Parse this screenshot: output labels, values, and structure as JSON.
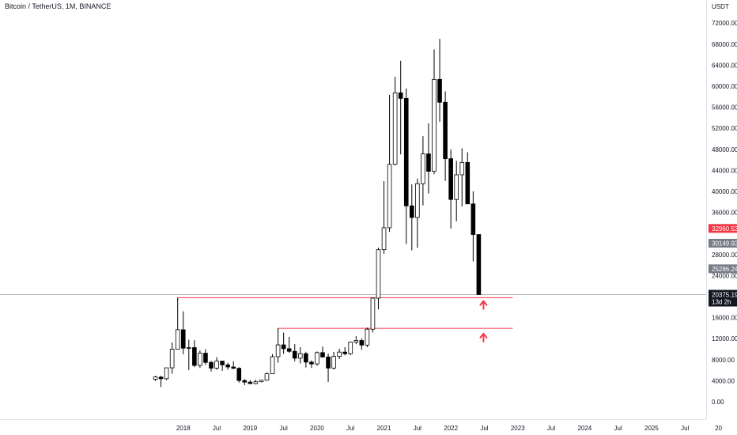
{
  "header": {
    "symbol_title": "Bitcoin / TetherUS, 1M, BINANCE"
  },
  "price_axis": {
    "currency": "USDT",
    "tick_labels": [
      "72000.00",
      "68000.00",
      "64000.00",
      "60000.00",
      "56000.00",
      "52000.00",
      "48000.00",
      "44000.00",
      "40000.00",
      "36000.00",
      "28000.00",
      "24000.00",
      "16000.00",
      "12000.00",
      "8000.00",
      "4000.00",
      "0.00"
    ]
  },
  "price_tags": [
    {
      "label": "32960.53",
      "bg": "#f23645"
    },
    {
      "label": "30149.93",
      "bg": "#787b86"
    },
    {
      "label": "25286.24",
      "bg": "#787b86"
    }
  ],
  "current_price": {
    "label": "20375.19",
    "countdown": "13d 2h",
    "bg": "#131722"
  },
  "time_axis": {
    "labels": [
      "2018",
      "Jul",
      "2019",
      "Jul",
      "2020",
      "Jul",
      "2021",
      "Jul",
      "2022",
      "Jul",
      "2023",
      "Jul",
      "2024",
      "Jul",
      "2025",
      "Jul",
      "20"
    ]
  },
  "colors": {
    "up_fill": "#ffffff",
    "down_fill": "#000000",
    "candle_stroke": "#000000",
    "support_line": "#f23645",
    "arrow": "#f23645",
    "crosshair": "#9598a1"
  },
  "chart_data": {
    "type": "candlestick",
    "title": "Bitcoin / TetherUS, 1M, BINANCE",
    "symbol": "BTCUSDT",
    "timeframe": "1M",
    "exchange": "BINANCE",
    "y_unit": "USDT",
    "ylim": [
      0,
      74000
    ],
    "x_start": "2017-08",
    "x_end": "2026-01",
    "candles": [
      {
        "t": "2017-08",
        "o": 4260,
        "h": 4940,
        "l": 3930,
        "c": 4720
      },
      {
        "t": "2017-09",
        "o": 4690,
        "h": 4940,
        "l": 2820,
        "c": 4380
      },
      {
        "t": "2017-10",
        "o": 4380,
        "h": 6470,
        "l": 4110,
        "c": 6460
      },
      {
        "t": "2017-11",
        "o": 6460,
        "h": 11300,
        "l": 5330,
        "c": 10000
      },
      {
        "t": "2017-12",
        "o": 10000,
        "h": 19800,
        "l": 10000,
        "c": 13700
      },
      {
        "t": "2018-01",
        "o": 13700,
        "h": 17200,
        "l": 9040,
        "c": 10200
      },
      {
        "t": "2018-02",
        "o": 10200,
        "h": 11800,
        "l": 6000,
        "c": 10300
      },
      {
        "t": "2018-03",
        "o": 10300,
        "h": 11700,
        "l": 6600,
        "c": 6920
      },
      {
        "t": "2018-04",
        "o": 6920,
        "h": 9770,
        "l": 6420,
        "c": 9240
      },
      {
        "t": "2018-05",
        "o": 9240,
        "h": 10000,
        "l": 7030,
        "c": 7490
      },
      {
        "t": "2018-06",
        "o": 7490,
        "h": 7760,
        "l": 5760,
        "c": 6390
      },
      {
        "t": "2018-07",
        "o": 6390,
        "h": 8490,
        "l": 6070,
        "c": 7730
      },
      {
        "t": "2018-08",
        "o": 7730,
        "h": 7760,
        "l": 5880,
        "c": 7020
      },
      {
        "t": "2018-09",
        "o": 7020,
        "h": 7400,
        "l": 6100,
        "c": 6620
      },
      {
        "t": "2018-10",
        "o": 6620,
        "h": 7680,
        "l": 6200,
        "c": 6370
      },
      {
        "t": "2018-11",
        "o": 6370,
        "h": 6570,
        "l": 3650,
        "c": 4040
      },
      {
        "t": "2018-12",
        "o": 4040,
        "h": 4310,
        "l": 3160,
        "c": 3740
      },
      {
        "t": "2019-01",
        "o": 3740,
        "h": 4140,
        "l": 3350,
        "c": 3460
      },
      {
        "t": "2019-02",
        "o": 3460,
        "h": 4200,
        "l": 3370,
        "c": 3810
      },
      {
        "t": "2019-03",
        "o": 3810,
        "h": 4120,
        "l": 3690,
        "c": 4100
      },
      {
        "t": "2019-04",
        "o": 4100,
        "h": 5600,
        "l": 4030,
        "c": 5320
      },
      {
        "t": "2019-05",
        "o": 5320,
        "h": 9070,
        "l": 5330,
        "c": 8570
      },
      {
        "t": "2019-06",
        "o": 8570,
        "h": 13970,
        "l": 7450,
        "c": 10820
      },
      {
        "t": "2019-07",
        "o": 10820,
        "h": 13150,
        "l": 9100,
        "c": 10090
      },
      {
        "t": "2019-08",
        "o": 10090,
        "h": 12330,
        "l": 9320,
        "c": 9590
      },
      {
        "t": "2019-09",
        "o": 9590,
        "h": 10960,
        "l": 7710,
        "c": 8290
      },
      {
        "t": "2019-10",
        "o": 8290,
        "h": 10370,
        "l": 7300,
        "c": 9150
      },
      {
        "t": "2019-11",
        "o": 9150,
        "h": 9510,
        "l": 6520,
        "c": 7540
      },
      {
        "t": "2019-12",
        "o": 7540,
        "h": 7870,
        "l": 6430,
        "c": 7200
      },
      {
        "t": "2020-01",
        "o": 7200,
        "h": 9570,
        "l": 6850,
        "c": 9350
      },
      {
        "t": "2020-02",
        "o": 9350,
        "h": 10500,
        "l": 8410,
        "c": 8520
      },
      {
        "t": "2020-03",
        "o": 8520,
        "h": 9190,
        "l": 3780,
        "c": 6410
      },
      {
        "t": "2020-04",
        "o": 6410,
        "h": 9470,
        "l": 6150,
        "c": 8620
      },
      {
        "t": "2020-05",
        "o": 8620,
        "h": 10070,
        "l": 8120,
        "c": 9450
      },
      {
        "t": "2020-06",
        "o": 9450,
        "h": 10380,
        "l": 8830,
        "c": 9140
      },
      {
        "t": "2020-07",
        "o": 9140,
        "h": 11440,
        "l": 8890,
        "c": 11340
      },
      {
        "t": "2020-08",
        "o": 11340,
        "h": 12470,
        "l": 10960,
        "c": 11650
      },
      {
        "t": "2020-09",
        "o": 11650,
        "h": 12050,
        "l": 9880,
        "c": 10780
      },
      {
        "t": "2020-10",
        "o": 10780,
        "h": 14100,
        "l": 10370,
        "c": 13800
      },
      {
        "t": "2020-11",
        "o": 13800,
        "h": 19860,
        "l": 13200,
        "c": 19700
      },
      {
        "t": "2020-12",
        "o": 19700,
        "h": 29300,
        "l": 17570,
        "c": 28920
      },
      {
        "t": "2021-01",
        "o": 28920,
        "h": 41950,
        "l": 28130,
        "c": 33090
      },
      {
        "t": "2021-02",
        "o": 33090,
        "h": 58350,
        "l": 32300,
        "c": 45140
      },
      {
        "t": "2021-03",
        "o": 45140,
        "h": 61780,
        "l": 44950,
        "c": 58740
      },
      {
        "t": "2021-04",
        "o": 58740,
        "h": 64850,
        "l": 47040,
        "c": 57690
      },
      {
        "t": "2021-05",
        "o": 57690,
        "h": 59590,
        "l": 30000,
        "c": 37250
      },
      {
        "t": "2021-06",
        "o": 37250,
        "h": 41330,
        "l": 28800,
        "c": 35040
      },
      {
        "t": "2021-07",
        "o": 35040,
        "h": 42450,
        "l": 29280,
        "c": 41460
      },
      {
        "t": "2021-08",
        "o": 41460,
        "h": 50500,
        "l": 37330,
        "c": 47130
      },
      {
        "t": "2021-09",
        "o": 47130,
        "h": 52920,
        "l": 39600,
        "c": 43820
      },
      {
        "t": "2021-10",
        "o": 43820,
        "h": 67000,
        "l": 43280,
        "c": 61300
      },
      {
        "t": "2021-11",
        "o": 61300,
        "h": 69000,
        "l": 53250,
        "c": 56950
      },
      {
        "t": "2021-12",
        "o": 56950,
        "h": 59040,
        "l": 42000,
        "c": 46220
      },
      {
        "t": "2022-01",
        "o": 46220,
        "h": 47990,
        "l": 32920,
        "c": 38470
      },
      {
        "t": "2022-02",
        "o": 38470,
        "h": 45820,
        "l": 34320,
        "c": 43160
      },
      {
        "t": "2022-03",
        "o": 43160,
        "h": 48190,
        "l": 37160,
        "c": 45510
      },
      {
        "t": "2022-04",
        "o": 45510,
        "h": 47440,
        "l": 37580,
        "c": 37630
      },
      {
        "t": "2022-05",
        "o": 37630,
        "h": 40020,
        "l": 26700,
        "c": 31800
      },
      {
        "t": "2022-06",
        "o": 31800,
        "h": 31800,
        "l": 20375,
        "c": 20375
      }
    ],
    "horizontal_lines": [
      {
        "price": 19800,
        "from": "2017-12",
        "to": "2022-07"
      },
      {
        "price": 13970,
        "from": "2019-06",
        "to": "2022-07"
      }
    ],
    "annotations": [
      {
        "type": "arrow-up",
        "t": "2022-06",
        "price": 18400
      },
      {
        "type": "arrow-up",
        "t": "2022-06",
        "price": 12200
      }
    ]
  }
}
